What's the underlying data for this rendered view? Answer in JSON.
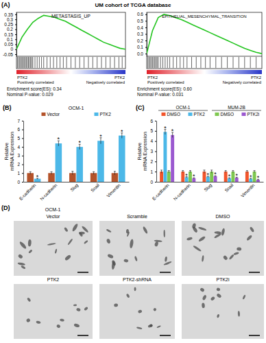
{
  "chart_data": [
    {
      "type": "line",
      "panel": "(A)",
      "supertitle": "UM cohort of TCGA database",
      "title": "METASTASIS_UP",
      "x": [
        0,
        5,
        10,
        15,
        20,
        25,
        30,
        35,
        40,
        45,
        50,
        55,
        60,
        65,
        70,
        75,
        80,
        85,
        90,
        95,
        100
      ],
      "values": [
        0,
        0.12,
        0.2,
        0.27,
        0.31,
        0.34,
        0.33,
        0.32,
        0.3,
        0.28,
        0.25,
        0.22,
        0.19,
        0.16,
        0.13,
        0.1,
        0.07,
        0.05,
        0.03,
        0.01,
        0
      ],
      "color": "#22c41e",
      "xlim": [
        0,
        100
      ],
      "ylim": [
        -0.07,
        0.37
      ],
      "yticks": [
        -0.05,
        0,
        0.05,
        0.1,
        0.15,
        0.2,
        0.25,
        0.3,
        0.35
      ],
      "tick_labels": "y",
      "hits": [
        1,
        2,
        3,
        4,
        5,
        6,
        7,
        8,
        9,
        10,
        11,
        12,
        13,
        14,
        15,
        17,
        19,
        21,
        23,
        25,
        28,
        31,
        34,
        37,
        40,
        43,
        46,
        50,
        54,
        58,
        62,
        66,
        70,
        74,
        78,
        82,
        86,
        90,
        94,
        97
      ],
      "annotations": {
        "left": [
          "PTK2",
          "Positively correlated"
        ],
        "right": [
          "PTK2",
          "Negatively correlated"
        ],
        "es": "Enrichment score(ES): 0.34",
        "p": "Nominal P-value: 0.029"
      }
    },
    {
      "type": "line",
      "title": "EPITHELIAL_MESENCHYMAL_TRANSITION",
      "x": [
        0,
        5,
        10,
        15,
        20,
        25,
        30,
        35,
        40,
        45,
        50,
        55,
        60,
        65,
        70,
        75,
        80,
        85,
        90,
        95,
        100
      ],
      "values": [
        0,
        0.35,
        0.55,
        0.6,
        0.58,
        0.55,
        0.52,
        0.48,
        0.44,
        0.4,
        0.36,
        0.32,
        0.28,
        0.24,
        0.2,
        0.16,
        0.12,
        0.08,
        0.05,
        0.02,
        0
      ],
      "color": "#22c41e",
      "xlim": [
        0,
        100
      ],
      "ylim": [
        -0.04,
        0.63
      ],
      "yticks": [
        {
          "value": 0,
          "label": "0.0"
        },
        0.1,
        0.2,
        0.3,
        0.4,
        0.5,
        0.6
      ],
      "tick_labels": "y",
      "hits": [
        1,
        2,
        3,
        4,
        5,
        6,
        7,
        8,
        9,
        10,
        12,
        14,
        16,
        18,
        20,
        23,
        26,
        29,
        32,
        35,
        39,
        43,
        47,
        51,
        55,
        60,
        65,
        70,
        75,
        80,
        85,
        90,
        95
      ],
      "annotations": {
        "left": [
          "PTK2",
          "Positively correlated"
        ],
        "right": [
          "PTK2",
          "Negatively correlated"
        ],
        "es": "Enrichment score(ES): 0.60",
        "p": "Nominal P-value: 0.031"
      }
    },
    {
      "type": "bar",
      "panel": "(B)",
      "title": "OCM-1",
      "categories": [
        "E-cadherin",
        "N-cadherin",
        "Slug",
        "Snail",
        "Vimentin"
      ],
      "series": [
        {
          "name": "Vector",
          "color": "#b4532a",
          "values": [
            1,
            1,
            1,
            1,
            1
          ],
          "errors": [
            0.15,
            0.15,
            0.2,
            0.15,
            0.2
          ]
        },
        {
          "name": "PTK2",
          "color": "#4cb8e8",
          "values": [
            0.35,
            4.4,
            4.0,
            4.7,
            5.3
          ],
          "errors": [
            0.05,
            0.3,
            0.3,
            0.35,
            0.3
          ],
          "significance": [
            "*",
            "*",
            "*",
            "*",
            "*"
          ]
        }
      ],
      "ylim": [
        0,
        7
      ],
      "yticks": [
        0,
        1,
        2,
        3,
        4,
        5,
        6,
        7
      ],
      "y_label": [
        "Relative",
        "mRNA Expression"
      ]
    },
    {
      "type": "bar",
      "panel": "(C)",
      "categories": [
        "E-cadherin",
        "N-cadherin",
        "Slug",
        "Snail",
        "Vimentin"
      ],
      "series": [
        {
          "name": "DMSO",
          "group": "OCM-1",
          "color": "#f2552c",
          "values": [
            1,
            1,
            1,
            1,
            1
          ],
          "errors": [
            0.15,
            0.1,
            0.15,
            0.1,
            0.1
          ]
        },
        {
          "name": "PTK2",
          "group": "OCM-1",
          "color": "#4cb8e8",
          "values": [
            4.9,
            0.45,
            0.5,
            0.35,
            0.3
          ],
          "errors": [
            0.25,
            0.05,
            0.05,
            0.05,
            0.05
          ],
          "significance": [
            "*",
            "*",
            "*",
            "*",
            "*"
          ]
        },
        {
          "name": "DMSO",
          "group": "MUM-2B",
          "color": "#7ec850",
          "values": [
            1,
            1,
            1,
            1,
            1
          ],
          "errors": [
            0.1,
            0.1,
            0.15,
            0.1,
            0.1
          ]
        },
        {
          "name": "PTK2i",
          "group": "MUM-2B",
          "color": "#9b59d0",
          "values": [
            4.6,
            0.35,
            0.55,
            0.4,
            0.2
          ],
          "errors": [
            0.25,
            0.05,
            0.05,
            0.05,
            0.05
          ],
          "significance": [
            "*",
            "*",
            "*",
            "*",
            "*"
          ]
        }
      ],
      "ylim": [
        0,
        6
      ],
      "yticks": [
        0,
        1,
        2,
        3,
        4,
        5,
        6
      ],
      "y_label": [
        "Relative",
        "mRNA Expression"
      ]
    }
  ],
  "images": {
    "panel": "(D)",
    "title": "OCM-1",
    "labels": [
      "Vector",
      "Scramble",
      "DMSO",
      "PTK2",
      "PTK2-shRNA",
      "PTK2i"
    ]
  }
}
